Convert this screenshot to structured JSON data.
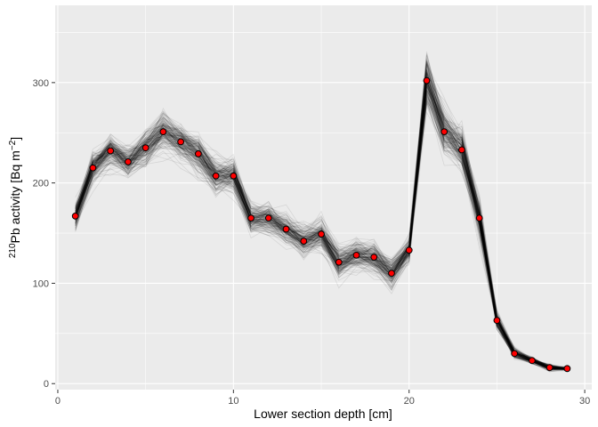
{
  "chart_data": {
    "type": "line",
    "xlabel": "Lower section depth [cm]",
    "ylabel": {
      "sup_mass": "210",
      "element": "Pb activity [Bq m",
      "sup_exp": "−2",
      "close": "]"
    },
    "xlim": [
      -0.15,
      30.4
    ],
    "ylim": [
      -6,
      377
    ],
    "x_ticks": [
      0,
      10,
      20,
      30
    ],
    "y_ticks": [
      0,
      100,
      200,
      300
    ],
    "grid": true,
    "series": [
      {
        "style": "red-points",
        "x": [
          1,
          2,
          3,
          4,
          5,
          6,
          7,
          8,
          9,
          10,
          11,
          12,
          13,
          14,
          15,
          16,
          17,
          18,
          19,
          20,
          21,
          22,
          23,
          24,
          25,
          26,
          27,
          28,
          29
        ],
        "y": [
          167,
          215,
          232,
          221,
          235,
          251,
          241,
          229,
          207,
          207,
          165,
          165,
          154,
          142,
          149,
          121,
          128,
          126,
          110,
          133,
          302,
          251,
          233,
          165,
          63,
          30,
          23,
          16,
          15
        ]
      }
    ],
    "ensemble": {
      "style": "grey-translucent-lines",
      "count": 180,
      "spread": {
        "x": [
          1,
          2,
          3,
          4,
          5,
          6,
          7,
          8,
          9,
          10,
          11,
          12,
          13,
          14,
          15,
          16,
          17,
          18,
          19,
          20,
          21,
          22,
          23,
          24,
          25,
          26,
          27,
          28,
          29
        ],
        "sd": [
          8,
          9,
          10,
          10,
          11,
          12,
          11,
          11,
          10,
          10,
          9,
          9,
          9,
          9,
          9,
          9,
          9,
          9,
          9,
          7,
          15,
          14,
          13,
          11,
          5,
          3,
          2,
          2,
          1
        ]
      }
    },
    "colors": {
      "panel": "#ebebeb",
      "grid_major": "#ffffff",
      "ensemble_line": "#000000",
      "point_fill": "#ff0000",
      "point_stroke": "#000000"
    }
  }
}
